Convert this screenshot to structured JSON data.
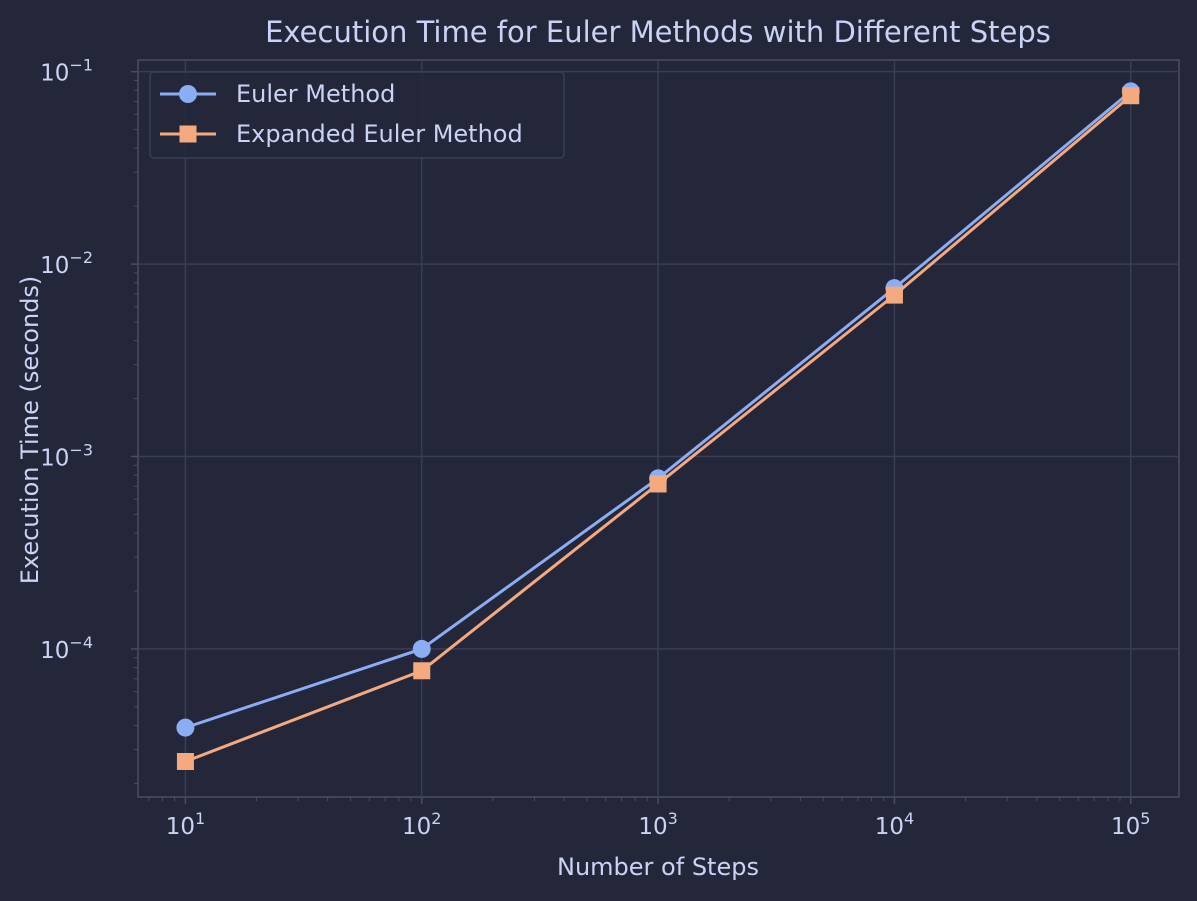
{
  "chart_data": {
    "type": "line",
    "title": "Execution Time for Euler Methods with Different Steps",
    "xlabel": "Number of Steps",
    "ylabel": "Execution Time (seconds)",
    "x_scale": "log",
    "y_scale": "log",
    "x": [
      10,
      100,
      1000,
      10000,
      100000
    ],
    "xlim": [
      6.3,
      160000
    ],
    "ylim": [
      1.7e-05,
      0.115
    ],
    "x_ticks": [
      {
        "value": 10,
        "base": "10",
        "exp": "1"
      },
      {
        "value": 100,
        "base": "10",
        "exp": "2"
      },
      {
        "value": 1000,
        "base": "10",
        "exp": "3"
      },
      {
        "value": 10000,
        "base": "10",
        "exp": "4"
      },
      {
        "value": 100000,
        "base": "10",
        "exp": "5"
      }
    ],
    "y_ticks": [
      {
        "value": 0.0001,
        "base": "10",
        "exp": "−4"
      },
      {
        "value": 0.001,
        "base": "10",
        "exp": "−3"
      },
      {
        "value": 0.01,
        "base": "10",
        "exp": "−2"
      },
      {
        "value": 0.1,
        "base": "10",
        "exp": "−1"
      }
    ],
    "grid": true,
    "legend_position": "top-left",
    "series": [
      {
        "name": "Euler Method",
        "marker": "circle",
        "color": "#8aadf4",
        "values": [
          3.9e-05,
          0.0001,
          0.00077,
          0.0075,
          0.079
        ]
      },
      {
        "name": "Expanded Euler Method",
        "marker": "square",
        "color": "#f5a97f",
        "values": [
          2.6e-05,
          7.7e-05,
          0.00072,
          0.0069,
          0.075
        ]
      }
    ]
  },
  "colors": {
    "background": "#24273a",
    "text": "#cad3f5",
    "grid": "#3a3e53",
    "spine": "#494d64",
    "legend_bg": "#24273a",
    "legend_border": "#3a3e53"
  }
}
